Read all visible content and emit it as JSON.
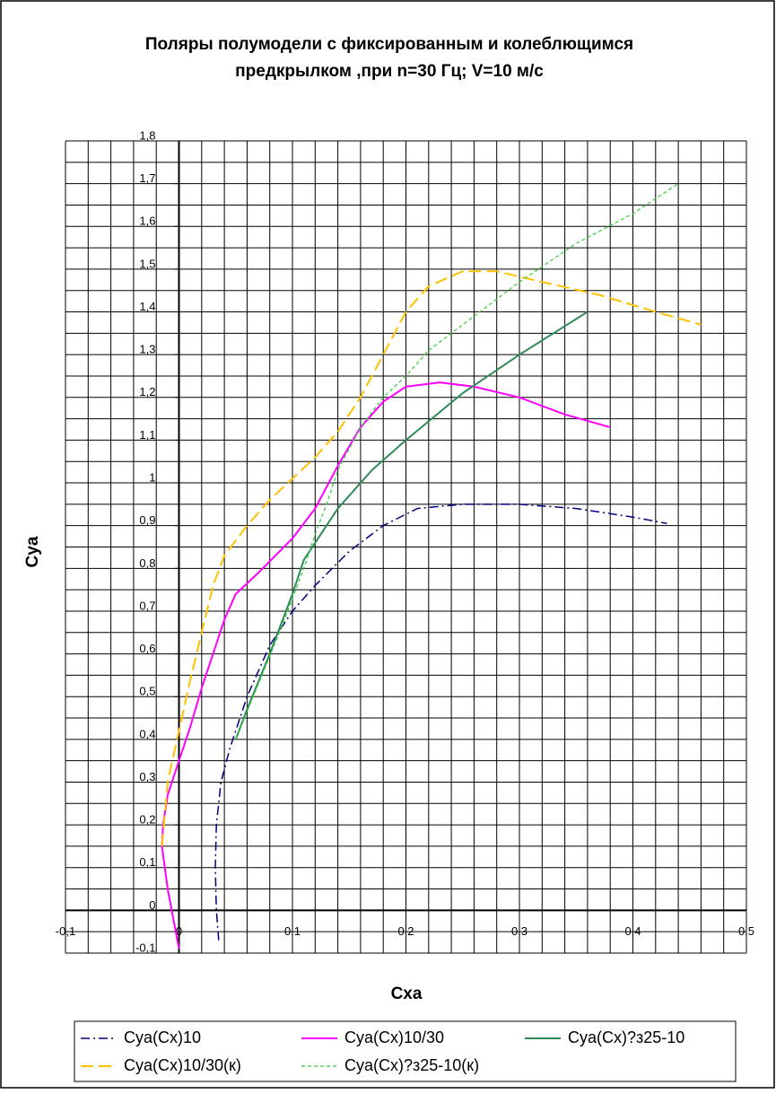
{
  "chart_data": {
    "type": "line",
    "title": [
      "Поляры полумодели с фиксированным  и  колеблющимся",
      "предкрылком ,при n=30 Гц; V=10 м/с"
    ],
    "xlabel": "Cxa",
    "ylabel": "Cya",
    "xlim": [
      -0.1,
      0.5
    ],
    "ylim": [
      -0.1,
      1.8
    ],
    "xticks": [
      {
        "value": -0.1,
        "label": "-0,1"
      },
      0,
      {
        "value": 0.1,
        "label": "0,1"
      },
      {
        "value": 0.2,
        "label": "0,2"
      },
      {
        "value": 0.3,
        "label": "0,3"
      },
      {
        "value": 0.4,
        "label": "0,4"
      },
      {
        "value": 0.5,
        "label": "0,5"
      }
    ],
    "yticks": [
      {
        "value": -0.1,
        "label": "-0,1"
      },
      0,
      {
        "value": 0.1,
        "label": "0,1"
      },
      {
        "value": 0.2,
        "label": "0,2"
      },
      {
        "value": 0.3,
        "label": "0,3"
      },
      {
        "value": 0.4,
        "label": "0,4"
      },
      {
        "value": 0.5,
        "label": "0,5"
      },
      {
        "value": 0.6,
        "label": "0,6"
      },
      {
        "value": 0.7,
        "label": "0,7"
      },
      {
        "value": 0.8,
        "label": "0,8"
      },
      {
        "value": 0.9,
        "label": "0,9"
      },
      1,
      {
        "value": 1.1,
        "label": "1,1"
      },
      {
        "value": 1.2,
        "label": "1,2"
      },
      {
        "value": 1.3,
        "label": "1,3"
      },
      {
        "value": 1.4,
        "label": "1,4"
      },
      {
        "value": 1.5,
        "label": "1,5"
      },
      {
        "value": 1.6,
        "label": "1,6"
      },
      {
        "value": 1.7,
        "label": "1,7"
      },
      {
        "value": 1.8,
        "label": "1,8"
      }
    ],
    "grid": true,
    "grid_step": {
      "x": 0.02,
      "y": 0.05
    },
    "legend": "bottom",
    "series": [
      {
        "name": "Cya(Cx)10",
        "color": "#000080",
        "dash": "10,4,2,4",
        "width": 1.5,
        "x": [
          0.035,
          0.033,
          0.032,
          0.033,
          0.037,
          0.045,
          0.06,
          0.08,
          0.1,
          0.12,
          0.15,
          0.18,
          0.21,
          0.25,
          0.3,
          0.35,
          0.4,
          0.43
        ],
        "values": [
          -0.07,
          0,
          0.1,
          0.2,
          0.3,
          0.38,
          0.5,
          0.62,
          0.7,
          0.76,
          0.84,
          0.9,
          0.94,
          0.95,
          0.95,
          0.94,
          0.92,
          0.905
        ]
      },
      {
        "name": "Cya(Cx)10/30",
        "color": "#ff00ff",
        "dash": "none",
        "width": 2,
        "x": [
          0,
          -0.01,
          -0.015,
          -0.014,
          -0.01,
          0,
          0.01,
          0.02,
          0.03,
          0.04,
          0.05,
          0.07,
          0.1,
          0.12,
          0.14,
          0.16,
          0.18,
          0.2,
          0.23,
          0.26,
          0.3,
          0.34,
          0.38
        ],
        "values": [
          -0.09,
          0.05,
          0.15,
          0.2,
          0.27,
          0.35,
          0.43,
          0.52,
          0.6,
          0.68,
          0.74,
          0.79,
          0.87,
          0.94,
          1.04,
          1.13,
          1.19,
          1.225,
          1.235,
          1.225,
          1.2,
          1.16,
          1.13
        ]
      },
      {
        "name": "Cya(Cx)?з25-10",
        "color": "#2e8b57",
        "dash": "none",
        "width": 2,
        "x": [
          0.05,
          0.06,
          0.08,
          0.1,
          0.11,
          0.14,
          0.17,
          0.2,
          0.25,
          0.3,
          0.36
        ],
        "values": [
          0.4,
          0.47,
          0.6,
          0.74,
          0.82,
          0.94,
          1.03,
          1.1,
          1.21,
          1.3,
          1.4
        ]
      },
      {
        "name": "Cya(Cx)10/30(к)",
        "color": "#ffc000",
        "dash": "14,6",
        "width": 2,
        "x": [
          -0.015,
          -0.01,
          0,
          0.01,
          0.02,
          0.03,
          0.04,
          0.06,
          0.08,
          0.1,
          0.12,
          0.14,
          0.16,
          0.18,
          0.2,
          0.22,
          0.25,
          0.28,
          0.32,
          0.37,
          0.42,
          0.46
        ],
        "values": [
          0.15,
          0.3,
          0.42,
          0.54,
          0.65,
          0.76,
          0.83,
          0.9,
          0.96,
          1.01,
          1.06,
          1.12,
          1.2,
          1.3,
          1.4,
          1.46,
          1.495,
          1.495,
          1.47,
          1.44,
          1.4,
          1.37
        ]
      },
      {
        "name": "Cya(Cx)?з25-10(к)",
        "color": "#33cc33",
        "dash": "4,3",
        "width": 1.2,
        "x": [
          0.05,
          0.07,
          0.09,
          0.11,
          0.12,
          0.13,
          0.14,
          0.16,
          0.18,
          0.2,
          0.22,
          0.25,
          0.3,
          0.35,
          0.4,
          0.44
        ],
        "values": [
          0.4,
          0.53,
          0.66,
          0.8,
          0.88,
          0.95,
          1.03,
          1.13,
          1.2,
          1.25,
          1.31,
          1.37,
          1.47,
          1.56,
          1.63,
          1.7
        ]
      }
    ]
  }
}
